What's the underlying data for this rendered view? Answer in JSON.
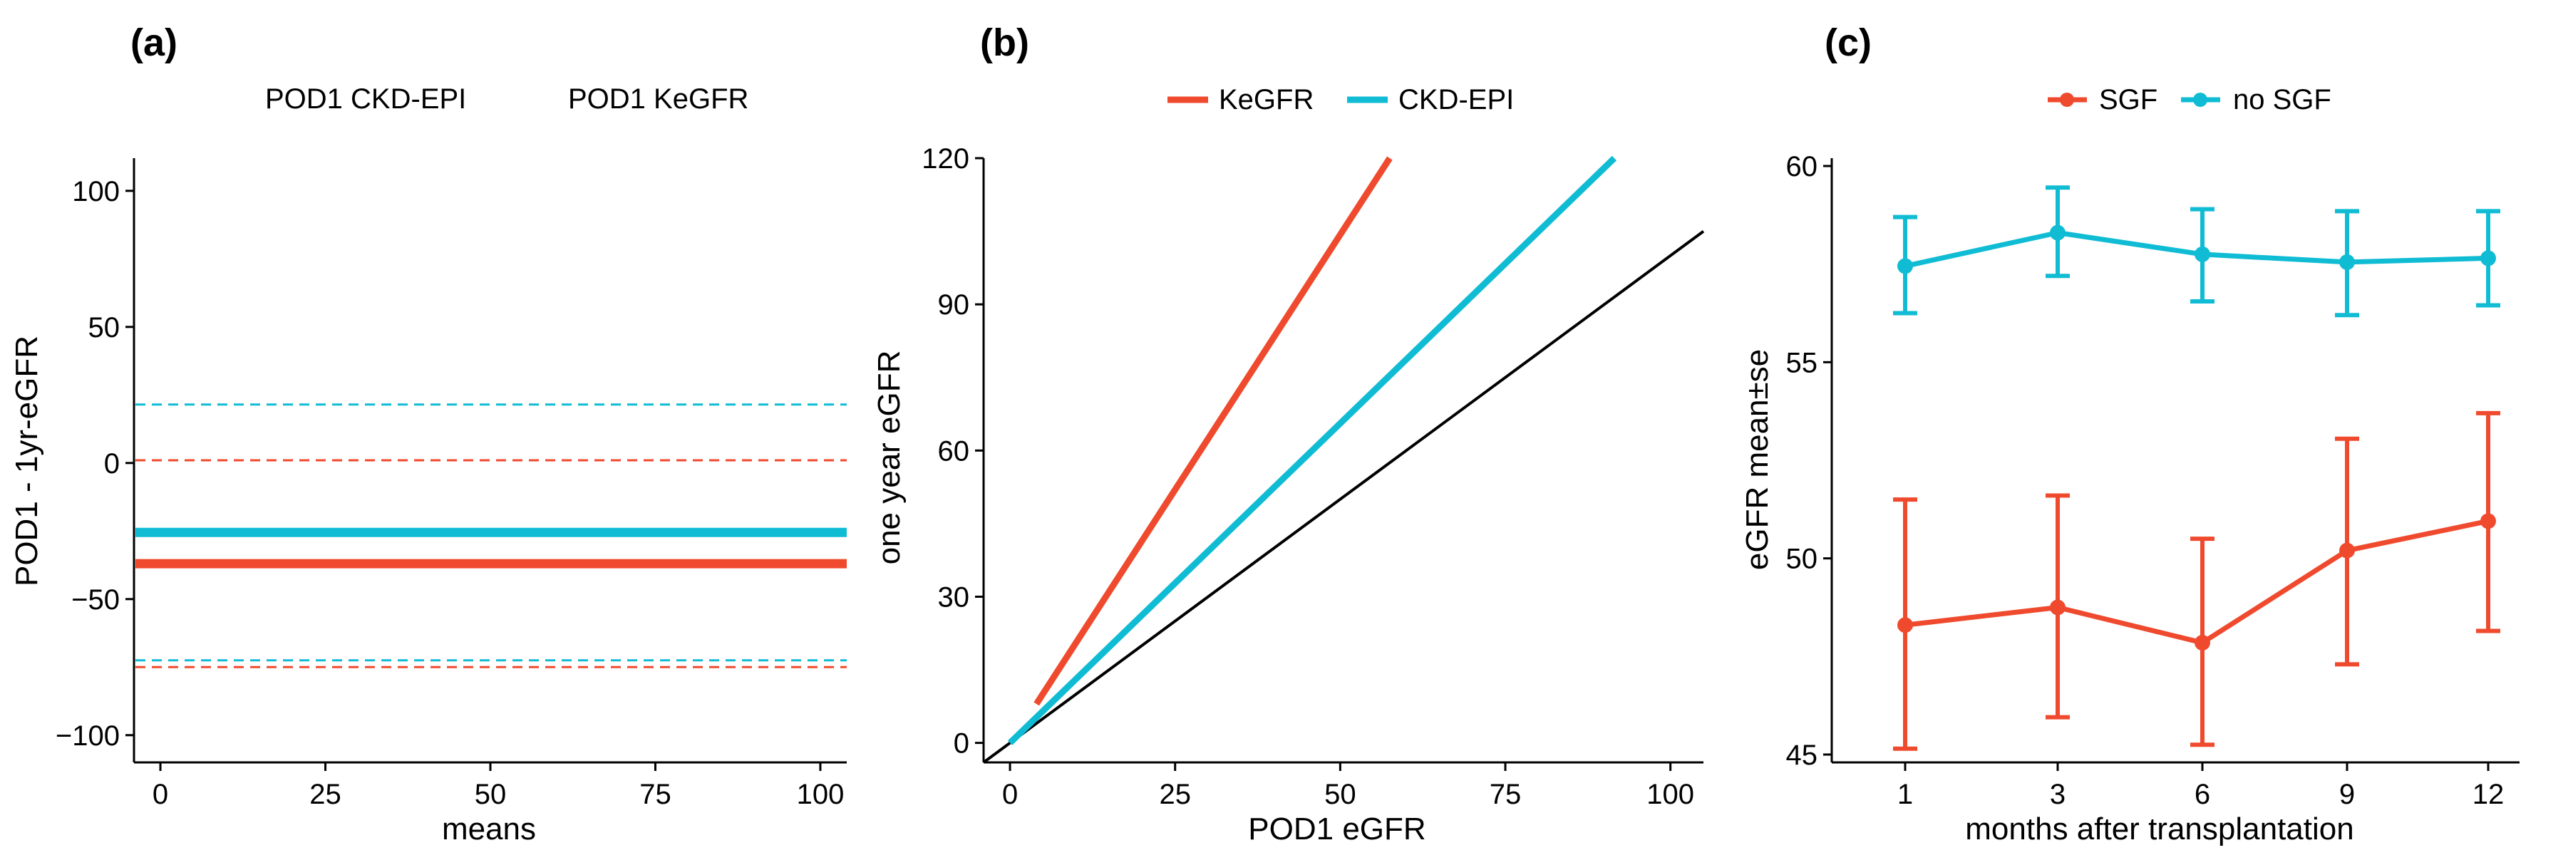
{
  "colors": {
    "red": "#F04A2E",
    "cyan": "#10BCD4",
    "black": "#000000"
  },
  "chart_data": [
    {
      "panel": "(a)",
      "type": "line",
      "legend": [
        "POD1 CKD-EPI",
        "POD1 KeGFR"
      ],
      "xlabel": "means",
      "ylabel": "POD1 - 1yr-eGFR",
      "xlim": [
        -4,
        104
      ],
      "ylim": [
        -110,
        112
      ],
      "xticks": [
        0,
        25,
        50,
        75,
        100
      ],
      "xtick_labels": [
        "0",
        "25",
        "50",
        "75",
        "100"
      ],
      "yticks": [
        100,
        50,
        0,
        -50,
        -100
      ],
      "ytick_labels": [
        "100",
        "50",
        "0",
        "−50",
        "−100"
      ],
      "lines": [
        {
          "name": "CKD-EPI upper limit",
          "color": "cyan",
          "style": "dashed",
          "y": 21.5
        },
        {
          "name": "KeGFR upper limit",
          "color": "red",
          "style": "dashed",
          "y": 1
        },
        {
          "name": "CKD-EPI mean difference",
          "color": "cyan",
          "style": "solid",
          "y": -25.5
        },
        {
          "name": "KeGFR mean difference",
          "color": "red",
          "style": "solid",
          "y": -37
        },
        {
          "name": "CKD-EPI lower limit",
          "color": "cyan",
          "style": "dashed",
          "y": -72.5
        },
        {
          "name": "KeGFR lower limit",
          "color": "red",
          "style": "dashed",
          "y": -75
        }
      ]
    },
    {
      "panel": "(b)",
      "type": "line",
      "xlabel": "POD1 eGFR",
      "ylabel": "one year eGFR",
      "xlim": [
        -4,
        105
      ],
      "ylim": [
        -4,
        120
      ],
      "xticks": [
        0,
        25,
        50,
        75,
        100
      ],
      "xtick_labels": [
        "0",
        "25",
        "50",
        "75",
        "100"
      ],
      "yticks": [
        0,
        30,
        60,
        90,
        120
      ],
      "ytick_labels": [
        "0",
        "30",
        "60",
        "90",
        "120"
      ],
      "legend": [
        "KeGFR",
        "CKD-EPI"
      ],
      "series": [
        {
          "name": "KeGFR",
          "color": "red",
          "points": [
            [
              4,
              8
            ],
            [
              57.5,
              120
            ]
          ]
        },
        {
          "name": "CKD-EPI",
          "color": "cyan",
          "points": [
            [
              0,
              0
            ],
            [
              91.5,
              120
            ]
          ]
        },
        {
          "name": "identity",
          "color": "black",
          "points": [
            [
              -4,
              -4
            ],
            [
              105,
              105
            ]
          ]
        }
      ]
    },
    {
      "panel": "(c)",
      "type": "line",
      "xlabel": "months after transplantation",
      "ylabel": "eGFR mean±se",
      "categories": [
        "1",
        "3",
        "6",
        "9",
        "12"
      ],
      "ylim": [
        44.8,
        60.2
      ],
      "yticks": [
        45,
        50,
        55,
        60
      ],
      "ytick_labels": [
        "45",
        "50",
        "55",
        "60"
      ],
      "legend": [
        "SGF",
        "no SGF"
      ],
      "series": [
        {
          "name": "SGF",
          "color": "red",
          "values": [
            48.3,
            48.75,
            47.85,
            50.2,
            50.95
          ],
          "lower": [
            45.15,
            45.95,
            45.25,
            47.3,
            48.15
          ],
          "upper": [
            51.5,
            51.6,
            50.5,
            53.05,
            53.7
          ]
        },
        {
          "name": "no SGF",
          "color": "cyan",
          "values": [
            57.45,
            58.3,
            57.75,
            57.55,
            57.65
          ],
          "lower": [
            56.25,
            57.2,
            56.55,
            56.2,
            56.45
          ],
          "upper": [
            58.7,
            59.45,
            58.9,
            58.85,
            58.85
          ]
        }
      ]
    }
  ]
}
